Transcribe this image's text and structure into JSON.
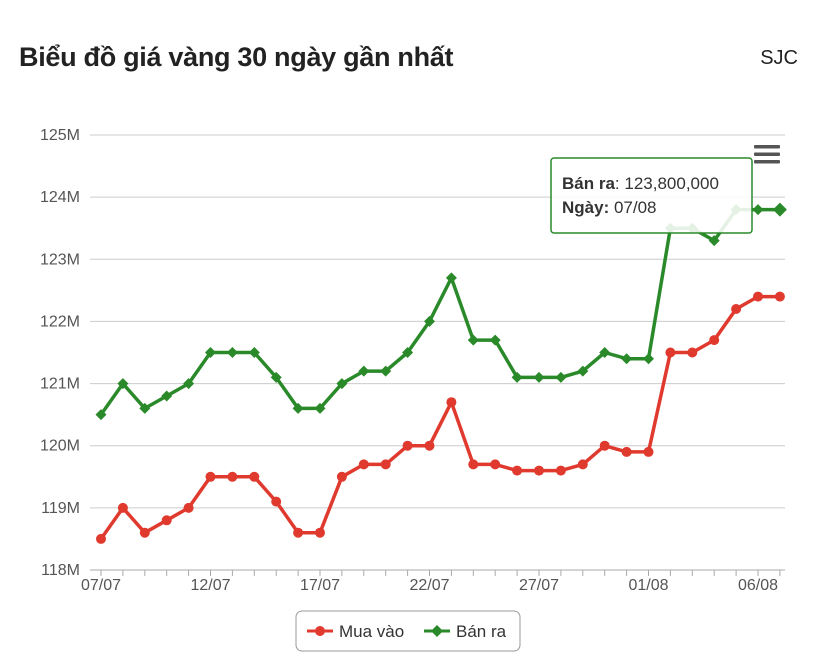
{
  "header": {
    "title": "Biểu đồ giá vàng 30 ngày gần nhất",
    "brand": "SJC"
  },
  "menu_icon": "hamburger-menu-icon",
  "chart_data": {
    "type": "line",
    "y_tick_labels": [
      "118M",
      "119M",
      "120M",
      "121M",
      "122M",
      "123M",
      "124M",
      "125M"
    ],
    "ylim": [
      118000000,
      125000000
    ],
    "x_tick_labels": [
      "07/07",
      "12/07",
      "17/07",
      "22/07",
      "27/07",
      "01/08",
      "06/08"
    ],
    "x_tick_index": [
      0,
      5,
      10,
      15,
      20,
      25,
      30
    ],
    "grid": true,
    "legend_position": "bottom-center",
    "series": [
      {
        "name": "Mua vào",
        "color": "#e03a2f",
        "marker": "circle",
        "values": [
          118500000,
          119000000,
          118600000,
          118800000,
          119000000,
          119500000,
          119500000,
          119500000,
          119100000,
          118600000,
          118600000,
          119500000,
          119700000,
          119700000,
          120000000,
          120000000,
          120700000,
          119700000,
          119700000,
          119600000,
          119600000,
          119600000,
          119700000,
          120000000,
          119900000,
          119900000,
          121500000,
          121500000,
          121700000,
          122200000,
          122400000,
          122400000
        ]
      },
      {
        "name": "Bán ra",
        "color": "#2a8a2a",
        "marker": "diamond",
        "values": [
          120500000,
          121000000,
          120600000,
          120800000,
          121000000,
          121500000,
          121500000,
          121500000,
          121100000,
          120600000,
          120600000,
          121000000,
          121200000,
          121200000,
          121500000,
          122000000,
          122700000,
          121700000,
          121700000,
          121100000,
          121100000,
          121100000,
          121200000,
          121500000,
          121400000,
          121400000,
          123500000,
          123500000,
          123300000,
          123800000,
          123800000,
          123800000
        ]
      }
    ],
    "tooltip": {
      "series_label": "Bán ra",
      "value_text": "123,800,000",
      "date_label": "Ngày",
      "date_text": "07/08",
      "point_index": 31
    }
  }
}
